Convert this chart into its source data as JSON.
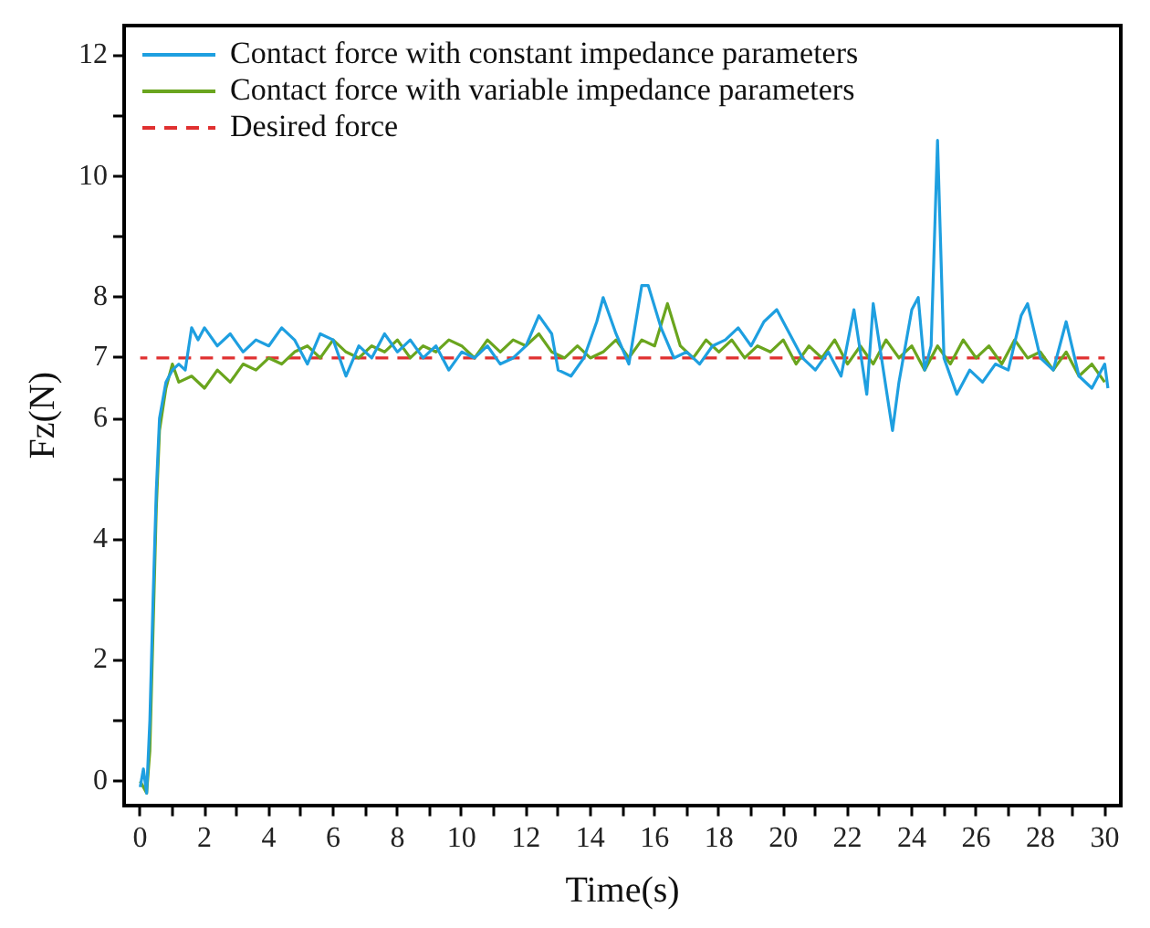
{
  "chart_data": {
    "type": "line",
    "xlabel": "Time(s)",
    "ylabel": "Fz(N)",
    "xlim": [
      -0.5,
      30.5
    ],
    "ylim": [
      -0.4,
      12.5
    ],
    "xticks": [
      0,
      {
        "value": 1,
        "label": null
      },
      2,
      {
        "value": 3,
        "label": null
      },
      4,
      {
        "value": 5,
        "label": null
      },
      6,
      {
        "value": 7,
        "label": null
      },
      8,
      {
        "value": 9,
        "label": null
      },
      10,
      {
        "value": 11,
        "label": null
      },
      12,
      {
        "value": 13,
        "label": null
      },
      14,
      {
        "value": 15,
        "label": null
      },
      16,
      {
        "value": 17,
        "label": null
      },
      18,
      {
        "value": 19,
        "label": null
      },
      20,
      {
        "value": 21,
        "label": null
      },
      22,
      {
        "value": 23,
        "label": null
      },
      24,
      {
        "value": 25,
        "label": null
      },
      26,
      {
        "value": 27,
        "label": null
      },
      28,
      {
        "value": 29,
        "label": null
      },
      30
    ],
    "yticks": [
      0,
      {
        "value": 1,
        "label": null
      },
      2,
      {
        "value": 3,
        "label": null
      },
      4,
      {
        "value": 5,
        "label": null
      },
      6,
      7,
      8,
      {
        "value": 9,
        "label": null
      },
      10,
      {
        "value": 11,
        "label": null
      },
      12
    ],
    "grid": false,
    "legend": "top left",
    "marker": "none",
    "series": [
      {
        "name": "Contact force with constant impedance parameters",
        "color": "#1e9fe0",
        "line_style": "solid",
        "x": [
          0,
          0.1,
          0.2,
          0.3,
          0.4,
          0.5,
          0.6,
          0.8,
          1.0,
          1.2,
          1.4,
          1.6,
          1.8,
          2.0,
          2.4,
          2.8,
          3.2,
          3.6,
          4.0,
          4.4,
          4.8,
          5.2,
          5.6,
          6.0,
          6.4,
          6.8,
          7.2,
          7.6,
          8.0,
          8.4,
          8.8,
          9.2,
          9.6,
          10.0,
          10.4,
          10.8,
          11.2,
          11.6,
          12.0,
          12.4,
          12.8,
          13.0,
          13.4,
          13.8,
          14.2,
          14.4,
          14.8,
          15.2,
          15.6,
          15.8,
          16.2,
          16.6,
          17.0,
          17.4,
          17.8,
          18.2,
          18.6,
          19.0,
          19.4,
          19.8,
          20.2,
          20.6,
          21.0,
          21.4,
          21.8,
          22.2,
          22.6,
          22.8,
          23.2,
          23.4,
          23.6,
          24.0,
          24.2,
          24.4,
          24.6,
          24.8,
          25.0,
          25.4,
          25.8,
          26.2,
          26.6,
          27.0,
          27.4,
          27.6,
          28.0,
          28.4,
          28.8,
          29.2,
          29.6,
          30.0,
          30.1
        ],
        "values": [
          -0.1,
          0.2,
          -0.2,
          1.0,
          3.0,
          4.8,
          6.0,
          6.6,
          6.8,
          6.9,
          6.8,
          7.5,
          7.3,
          7.5,
          7.2,
          7.4,
          7.1,
          7.3,
          7.2,
          7.5,
          7.3,
          6.9,
          7.4,
          7.3,
          6.7,
          7.2,
          7.0,
          7.4,
          7.1,
          7.3,
          7.0,
          7.2,
          6.8,
          7.1,
          7.0,
          7.2,
          6.9,
          7.0,
          7.2,
          7.7,
          7.4,
          6.8,
          6.7,
          7.0,
          7.6,
          8.0,
          7.4,
          6.9,
          8.2,
          8.2,
          7.5,
          7.0,
          7.1,
          6.9,
          7.2,
          7.3,
          7.5,
          7.2,
          7.6,
          7.8,
          7.4,
          7.0,
          6.8,
          7.1,
          6.7,
          7.8,
          6.4,
          7.9,
          6.5,
          5.8,
          6.6,
          7.8,
          8.0,
          6.8,
          7.2,
          10.6,
          7.0,
          6.4,
          6.8,
          6.6,
          6.9,
          6.8,
          7.7,
          7.9,
          7.0,
          6.8,
          7.6,
          6.7,
          6.5,
          6.9,
          6.5
        ]
      },
      {
        "name": "Contact force with variable impedance parameters",
        "color": "#6aa51e",
        "line_style": "solid",
        "x": [
          0,
          0.2,
          0.3,
          0.4,
          0.5,
          0.6,
          0.8,
          1.0,
          1.2,
          1.6,
          2.0,
          2.4,
          2.8,
          3.2,
          3.6,
          4.0,
          4.4,
          4.8,
          5.2,
          5.6,
          6.0,
          6.4,
          6.8,
          7.2,
          7.6,
          8.0,
          8.4,
          8.8,
          9.2,
          9.6,
          10.0,
          10.4,
          10.8,
          11.2,
          11.6,
          12.0,
          12.4,
          12.8,
          13.2,
          13.6,
          14.0,
          14.4,
          14.8,
          15.2,
          15.6,
          16.0,
          16.4,
          16.8,
          17.2,
          17.6,
          18.0,
          18.4,
          18.8,
          19.2,
          19.6,
          20.0,
          20.4,
          20.8,
          21.2,
          21.6,
          22.0,
          22.4,
          22.8,
          23.2,
          23.6,
          24.0,
          24.4,
          24.8,
          25.2,
          25.6,
          26.0,
          26.4,
          26.8,
          27.2,
          27.6,
          28.0,
          28.4,
          28.8,
          29.2,
          29.6,
          30.0
        ],
        "values": [
          0,
          -0.2,
          0.5,
          2.5,
          4.5,
          5.8,
          6.5,
          6.9,
          6.6,
          6.7,
          6.5,
          6.8,
          6.6,
          6.9,
          6.8,
          7.0,
          6.9,
          7.1,
          7.2,
          7.0,
          7.3,
          7.1,
          7.0,
          7.2,
          7.1,
          7.3,
          7.0,
          7.2,
          7.1,
          7.3,
          7.2,
          7.0,
          7.3,
          7.1,
          7.3,
          7.2,
          7.4,
          7.1,
          7.0,
          7.2,
          7.0,
          7.1,
          7.3,
          7.0,
          7.3,
          7.2,
          7.9,
          7.2,
          7.0,
          7.3,
          7.1,
          7.3,
          7.0,
          7.2,
          7.1,
          7.3,
          6.9,
          7.2,
          7.0,
          7.3,
          6.9,
          7.2,
          6.9,
          7.3,
          7.0,
          7.2,
          6.8,
          7.2,
          6.9,
          7.3,
          7.0,
          7.2,
          6.9,
          7.3,
          7.0,
          7.1,
          6.8,
          7.1,
          6.7,
          6.9,
          6.6
        ]
      },
      {
        "name": "Desired force",
        "color": "#e03030",
        "line_style": "dashed",
        "x": [
          0,
          30
        ],
        "values": [
          7,
          7
        ]
      }
    ]
  }
}
